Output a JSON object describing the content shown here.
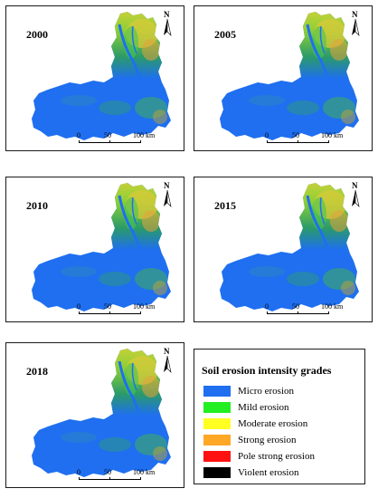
{
  "panels": [
    {
      "year": "2000"
    },
    {
      "year": "2005"
    },
    {
      "year": "2010"
    },
    {
      "year": "2015"
    },
    {
      "year": "2018"
    }
  ],
  "north_label": "N",
  "scale": {
    "tick0": "0",
    "tick1": "50",
    "tick2": "100",
    "unit": "km"
  },
  "legend": {
    "title": "Soil erosion intensity grades",
    "items": [
      {
        "label": "Micro erosion",
        "color": "#1f6ff0"
      },
      {
        "label": "Mild erosion",
        "color": "#22ee22"
      },
      {
        "label": "Moderate erosion",
        "color": "#ffff22"
      },
      {
        "label": "Strong erosion",
        "color": "#ffa726"
      },
      {
        "label": "Pole strong erosion",
        "color": "#ff1111"
      },
      {
        "label": "Violent erosion",
        "color": "#000000"
      }
    ]
  }
}
